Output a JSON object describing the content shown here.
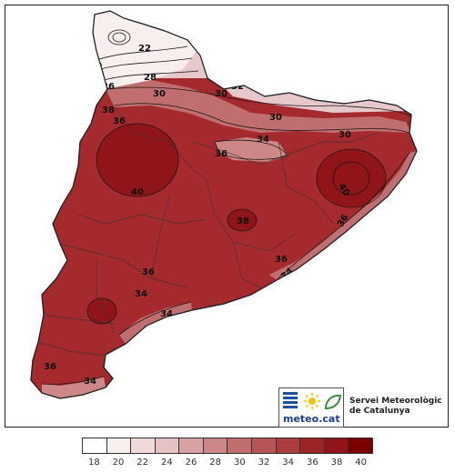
{
  "legend": {
    "ticks": [
      "18",
      "20",
      "22",
      "24",
      "26",
      "28",
      "30",
      "32",
      "34",
      "36",
      "38",
      "40"
    ],
    "colors": [
      "#ffffff",
      "#f7eeee",
      "#efd9da",
      "#e5c2c4",
      "#d8a2a4",
      "#cd8788",
      "#c06e70",
      "#b65457",
      "#a83c3f",
      "#9b2427",
      "#8f1519",
      "#7a0000"
    ]
  },
  "contour_labels": [
    "22",
    "24",
    "26",
    "28",
    "30",
    "30",
    "32",
    "30",
    "38",
    "36",
    "30",
    "34",
    "36",
    "30",
    "40",
    "40",
    "36",
    "36",
    "38",
    "36",
    "34",
    "36",
    "34",
    "34",
    "36",
    "34"
  ],
  "branding": {
    "logo_text": "meteo.cat",
    "service_line1": "Servei Meteorològic",
    "service_line2": "de Catalunya"
  },
  "colors": {
    "region_hot": "#a52a2e",
    "region_very_hot": "#8f1519",
    "region_mid": "#c06e70",
    "region_cool": "#e6c8ca",
    "region_cold": "#f7eeee",
    "border": "#222222",
    "logo_blue": "#1c4fa6",
    "logo_yellow": "#f2c500",
    "logo_green": "#3a8e3a"
  }
}
